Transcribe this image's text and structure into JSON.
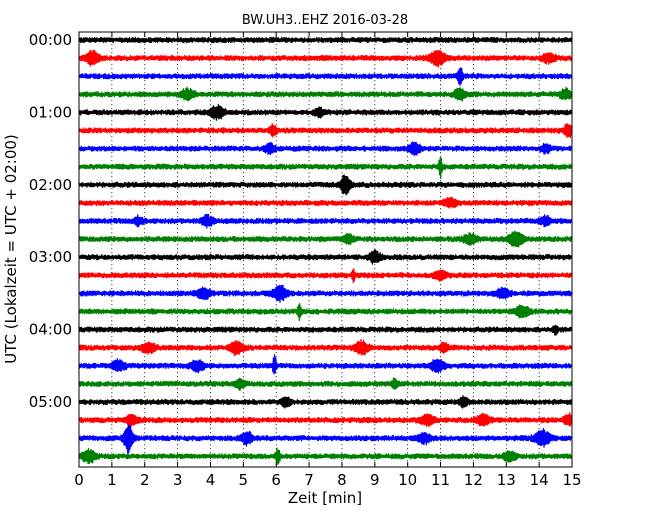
{
  "chart_data": {
    "type": "line",
    "title": "BW.UH3..EHZ 2016-03-28",
    "xlabel": "Zeit  [min]",
    "ylabel": "UTC (Lokalzeit = UTC + 02:00)",
    "xlim": [
      0,
      15
    ],
    "xticks": [
      0,
      1,
      2,
      3,
      4,
      5,
      6,
      7,
      8,
      9,
      10,
      11,
      12,
      13,
      14,
      15
    ],
    "xtick_labels": [
      "0",
      "1",
      "2",
      "3",
      "4",
      "5",
      "6",
      "7",
      "8",
      "9",
      "10",
      "11",
      "12",
      "13",
      "14",
      "15"
    ],
    "ytick_labels": [
      "00:00",
      "01:00",
      "02:00",
      "03:00",
      "04:00",
      "05:00"
    ],
    "row_minutes": 15,
    "grid": true,
    "color_cycle": [
      "#000000",
      "#ff0000",
      "#0000ff",
      "#008000"
    ],
    "series": [
      {
        "start": "00:00",
        "color": "#000000",
        "events": []
      },
      {
        "start": "00:15",
        "color": "#ff0000",
        "events": [
          {
            "t": 0.4,
            "amp": 0.45,
            "width": 0.3
          },
          {
            "t": 10.9,
            "amp": 0.55,
            "width": 0.35
          },
          {
            "t": 14.3,
            "amp": 0.3,
            "width": 0.3
          }
        ]
      },
      {
        "start": "00:30",
        "color": "#0000ff",
        "events": [
          {
            "t": 11.6,
            "amp": 0.7,
            "width": 0.1
          }
        ]
      },
      {
        "start": "00:45",
        "color": "#008000",
        "events": [
          {
            "t": 3.3,
            "amp": 0.35,
            "width": 0.3
          },
          {
            "t": 11.6,
            "amp": 0.4,
            "width": 0.25
          },
          {
            "t": 14.8,
            "amp": 0.35,
            "width": 0.25
          }
        ]
      },
      {
        "start": "01:00",
        "color": "#000000",
        "events": [
          {
            "t": 4.2,
            "amp": 0.45,
            "width": 0.3
          },
          {
            "t": 7.3,
            "amp": 0.3,
            "width": 0.2
          }
        ]
      },
      {
        "start": "01:15",
        "color": "#ff0000",
        "events": [
          {
            "t": 5.9,
            "amp": 0.4,
            "width": 0.15
          },
          {
            "t": 14.9,
            "amp": 0.45,
            "width": 0.2
          }
        ]
      },
      {
        "start": "01:30",
        "color": "#0000ff",
        "events": [
          {
            "t": 5.8,
            "amp": 0.35,
            "width": 0.2
          },
          {
            "t": 10.2,
            "amp": 0.4,
            "width": 0.25
          },
          {
            "t": 14.2,
            "amp": 0.3,
            "width": 0.2
          }
        ]
      },
      {
        "start": "01:45",
        "color": "#008000",
        "events": [
          {
            "t": 11.0,
            "amp": 0.8,
            "width": 0.07
          }
        ]
      },
      {
        "start": "02:00",
        "color": "#000000",
        "events": [
          {
            "t": 8.1,
            "amp": 0.7,
            "width": 0.2
          }
        ]
      },
      {
        "start": "02:15",
        "color": "#ff0000",
        "events": [
          {
            "t": 11.3,
            "amp": 0.3,
            "width": 0.3
          }
        ]
      },
      {
        "start": "02:30",
        "color": "#0000ff",
        "events": [
          {
            "t": 1.8,
            "amp": 0.3,
            "width": 0.2
          },
          {
            "t": 3.9,
            "amp": 0.35,
            "width": 0.25
          },
          {
            "t": 14.2,
            "amp": 0.3,
            "width": 0.25
          }
        ]
      },
      {
        "start": "02:45",
        "color": "#008000",
        "events": [
          {
            "t": 8.2,
            "amp": 0.3,
            "width": 0.25
          },
          {
            "t": 11.9,
            "amp": 0.35,
            "width": 0.3
          },
          {
            "t": 13.3,
            "amp": 0.45,
            "width": 0.35
          }
        ]
      },
      {
        "start": "03:00",
        "color": "#000000",
        "events": [
          {
            "t": 9.0,
            "amp": 0.4,
            "width": 0.25
          }
        ]
      },
      {
        "start": "03:15",
        "color": "#ff0000",
        "events": [
          {
            "t": 8.35,
            "amp": 0.6,
            "width": 0.06
          },
          {
            "t": 11.0,
            "amp": 0.3,
            "width": 0.3
          }
        ]
      },
      {
        "start": "03:30",
        "color": "#0000ff",
        "events": [
          {
            "t": 3.8,
            "amp": 0.35,
            "width": 0.3
          },
          {
            "t": 6.1,
            "amp": 0.55,
            "width": 0.3
          },
          {
            "t": 12.9,
            "amp": 0.3,
            "width": 0.3
          }
        ]
      },
      {
        "start": "03:45",
        "color": "#008000",
        "events": [
          {
            "t": 6.7,
            "amp": 0.55,
            "width": 0.08
          },
          {
            "t": 13.5,
            "amp": 0.4,
            "width": 0.3
          }
        ]
      },
      {
        "start": "04:00",
        "color": "#000000",
        "events": [
          {
            "t": 14.5,
            "amp": 0.3,
            "width": 0.1
          }
        ]
      },
      {
        "start": "04:15",
        "color": "#ff0000",
        "events": [
          {
            "t": 2.1,
            "amp": 0.35,
            "width": 0.3
          },
          {
            "t": 4.8,
            "amp": 0.45,
            "width": 0.3
          },
          {
            "t": 8.6,
            "amp": 0.45,
            "width": 0.3
          },
          {
            "t": 11.1,
            "amp": 0.3,
            "width": 0.2
          }
        ]
      },
      {
        "start": "04:30",
        "color": "#0000ff",
        "events": [
          {
            "t": 1.2,
            "amp": 0.35,
            "width": 0.3
          },
          {
            "t": 3.6,
            "amp": 0.35,
            "width": 0.3
          },
          {
            "t": 5.95,
            "amp": 0.7,
            "width": 0.08
          },
          {
            "t": 10.9,
            "amp": 0.45,
            "width": 0.3
          }
        ]
      },
      {
        "start": "04:45",
        "color": "#008000",
        "events": [
          {
            "t": 4.9,
            "amp": 0.3,
            "width": 0.2
          },
          {
            "t": 9.6,
            "amp": 0.35,
            "width": 0.12
          }
        ]
      },
      {
        "start": "05:00",
        "color": "#000000",
        "events": [
          {
            "t": 6.3,
            "amp": 0.3,
            "width": 0.2
          },
          {
            "t": 11.7,
            "amp": 0.3,
            "width": 0.2
          }
        ]
      },
      {
        "start": "05:15",
        "color": "#ff0000",
        "events": [
          {
            "t": 1.6,
            "amp": 0.35,
            "width": 0.25
          },
          {
            "t": 10.6,
            "amp": 0.4,
            "width": 0.3
          },
          {
            "t": 12.3,
            "amp": 0.35,
            "width": 0.3
          },
          {
            "t": 14.9,
            "amp": 0.4,
            "width": 0.2
          }
        ]
      },
      {
        "start": "05:30",
        "color": "#0000ff",
        "events": [
          {
            "t": 1.5,
            "amp": 1.0,
            "width": 0.2
          },
          {
            "t": 5.1,
            "amp": 0.45,
            "width": 0.25
          },
          {
            "t": 10.5,
            "amp": 0.35,
            "width": 0.3
          },
          {
            "t": 14.1,
            "amp": 0.55,
            "width": 0.35
          }
        ]
      },
      {
        "start": "05:45",
        "color": "#008000",
        "events": [
          {
            "t": 0.3,
            "amp": 0.45,
            "width": 0.3
          },
          {
            "t": 6.05,
            "amp": 0.55,
            "width": 0.1
          },
          {
            "t": 13.1,
            "amp": 0.35,
            "width": 0.25
          }
        ]
      }
    ]
  }
}
